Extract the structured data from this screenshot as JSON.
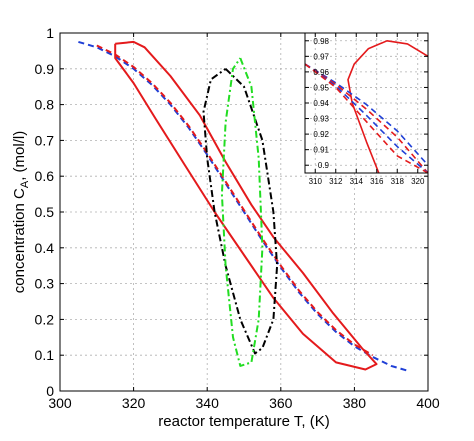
{
  "chart_data": {
    "type": "line",
    "title": "",
    "xlabel": "reactor temperature T, (K)",
    "ylabel_main": "concentration C",
    "ylabel_sub": "A",
    "ylabel_tail": ", (mol/l)",
    "xlim": [
      300,
      400
    ],
    "ylim": [
      0,
      1
    ],
    "xticks": [
      300,
      320,
      340,
      360,
      380,
      400
    ],
    "yticks": [
      0,
      0.1,
      0.2,
      0.3,
      0.4,
      0.5,
      0.6,
      0.7,
      0.8,
      0.9,
      1
    ],
    "grid": true,
    "colors": {
      "red": "#e41a1c",
      "blue": "#1f3fd6",
      "green": "#22dd22",
      "black": "#000000",
      "purple": "#7a3fb0"
    },
    "series": [
      {
        "style": "dashed",
        "color": "#1f3fd6",
        "x": [
          305,
          310,
          315,
          320,
          325,
          330,
          335,
          340,
          345,
          350,
          355,
          360,
          365,
          370,
          375,
          380,
          385,
          390,
          395
        ],
        "y": [
          0.975,
          0.96,
          0.935,
          0.9,
          0.855,
          0.8,
          0.735,
          0.66,
          0.58,
          0.5,
          0.42,
          0.345,
          0.275,
          0.215,
          0.165,
          0.125,
          0.095,
          0.07,
          0.055
        ]
      },
      {
        "style": "dashed",
        "color": "#e41a1c",
        "x": [
          310,
          315,
          320,
          325,
          330,
          335,
          340,
          345,
          350,
          355,
          360,
          365,
          370,
          375,
          380,
          385
        ],
        "y": [
          0.965,
          0.94,
          0.905,
          0.86,
          0.805,
          0.74,
          0.665,
          0.585,
          0.505,
          0.425,
          0.35,
          0.28,
          0.22,
          0.17,
          0.13,
          0.1
        ]
      },
      {
        "style": "solid",
        "color": "#e41a1c",
        "x": [
          315,
          320,
          323,
          330,
          338,
          345,
          352,
          358,
          366,
          374,
          382,
          386,
          383,
          375,
          366,
          358,
          350,
          342,
          334,
          326,
          320,
          315,
          315
        ],
        "y": [
          0.97,
          0.975,
          0.96,
          0.88,
          0.77,
          0.64,
          0.52,
          0.43,
          0.33,
          0.22,
          0.12,
          0.075,
          0.06,
          0.08,
          0.16,
          0.26,
          0.38,
          0.5,
          0.63,
          0.76,
          0.86,
          0.93,
          0.97
        ]
      },
      {
        "style": "dashdot",
        "color": "#000000",
        "x": [
          345,
          350,
          355,
          358,
          359,
          358,
          355,
          353,
          349,
          345,
          342,
          340,
          339,
          341,
          345
        ],
        "y": [
          0.9,
          0.85,
          0.7,
          0.5,
          0.35,
          0.2,
          0.12,
          0.105,
          0.2,
          0.35,
          0.5,
          0.65,
          0.78,
          0.87,
          0.9
        ]
      },
      {
        "style": "dashdot",
        "color": "#22dd22",
        "x": [
          349,
          352,
          354,
          355,
          354,
          352,
          349,
          347,
          345,
          344,
          345,
          347,
          349
        ],
        "y": [
          0.93,
          0.85,
          0.65,
          0.4,
          0.2,
          0.08,
          0.07,
          0.15,
          0.35,
          0.55,
          0.75,
          0.9,
          0.93
        ]
      }
    ],
    "inset": {
      "xlim": [
        309,
        321
      ],
      "ylim": [
        0.895,
        0.985
      ],
      "xticks": [
        310,
        312,
        314,
        316,
        318,
        320
      ],
      "yticks": [
        0.9,
        0.91,
        0.92,
        0.93,
        0.94,
        0.95,
        0.96,
        0.97,
        0.98
      ],
      "grid": true,
      "series": [
        {
          "style": "solid",
          "color": "#e41a1c",
          "x": [
            316.2,
            315,
            313.6,
            313.2,
            313.8,
            315.2,
            317,
            319,
            321
          ],
          "y": [
            0.895,
            0.915,
            0.94,
            0.955,
            0.965,
            0.975,
            0.98,
            0.978,
            0.97
          ]
        },
        {
          "style": "dashed",
          "color": "#1f3fd6",
          "x": [
            309,
            312,
            315,
            318,
            321
          ],
          "y": [
            0.965,
            0.953,
            0.939,
            0.922,
            0.9
          ]
        },
        {
          "style": "dashed",
          "color": "#e41a1c",
          "x": [
            309,
            312,
            315,
            318,
            321
          ],
          "y": [
            0.965,
            0.952,
            0.936,
            0.918,
            0.895
          ]
        },
        {
          "style": "dashed",
          "color": "#1f3fd6",
          "x": [
            309,
            312,
            315,
            318,
            321
          ],
          "y": [
            0.965,
            0.951,
            0.932,
            0.912,
            0.895
          ]
        },
        {
          "style": "dashed",
          "color": "#e41a1c",
          "x": [
            309,
            312,
            315,
            318,
            321
          ],
          "y": [
            0.965,
            0.95,
            0.928,
            0.906,
            0.895
          ]
        }
      ]
    }
  }
}
